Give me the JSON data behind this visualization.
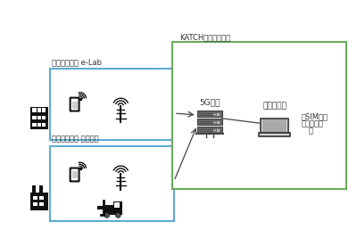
{
  "elab_label": "豊田自動織機 e-Lab",
  "takahama_label": "豊田自動織機 高浜工場",
  "katch_label": "KATCHデータセンタ",
  "core_label": "5Gコア",
  "operator_label": "オペレータ",
  "sim_label": "・SIM管理",
  "monitor_label": "・通信監視",
  "etc_label": "等",
  "blue_color": "#5badd0",
  "green_color": "#6aaa5a",
  "dark_color": "#111111",
  "gray_color": "#777777",
  "line_color": "#555555",
  "text_color": "#333333",
  "server_color": "#666666",
  "server_dark": "#444444"
}
